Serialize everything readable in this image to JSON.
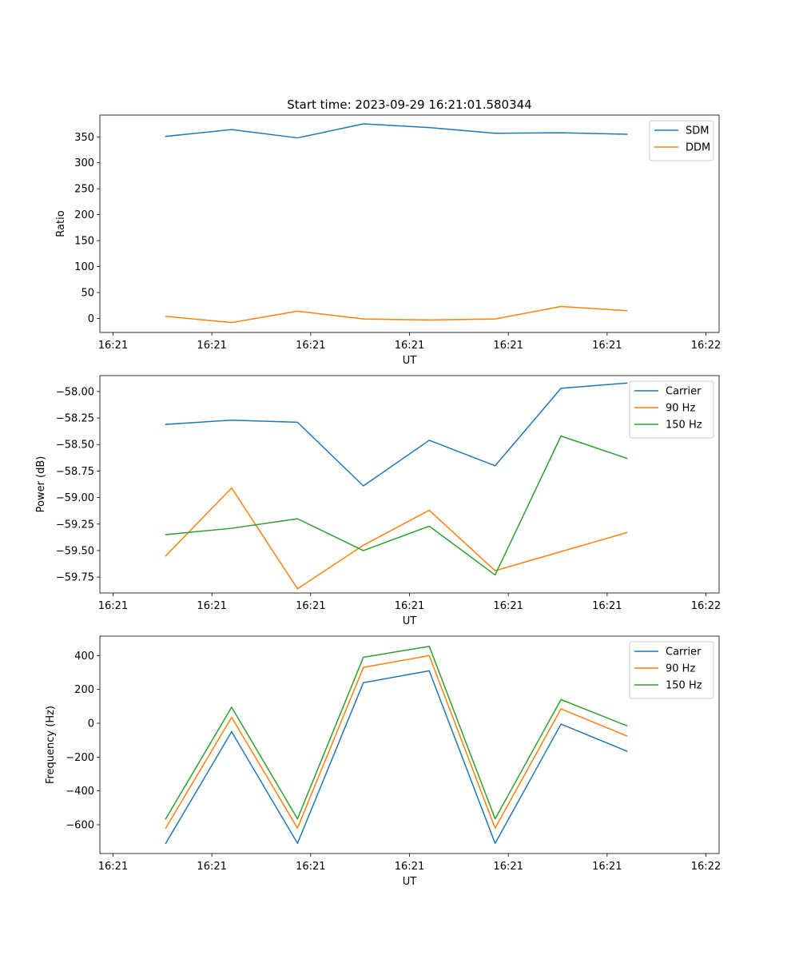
{
  "chart_data": [
    {
      "type": "line",
      "title": "Start time: 2023-09-29 16:21:01.580344",
      "xlabel": "UT",
      "ylabel": "Ratio",
      "x_tick_labels": [
        "16:21",
        "16:21",
        "16:21",
        "16:21",
        "16:21",
        "16:21",
        "16:22"
      ],
      "y_tick_labels": [
        "0",
        "50",
        "100",
        "150",
        "200",
        "250",
        "300",
        "350"
      ],
      "xlim": [
        0,
        9.4
      ],
      "ylim": [
        -27,
        392
      ],
      "x_ticks": [
        0.2,
        1.7,
        3.2,
        4.7,
        6.2,
        7.7,
        9.2
      ],
      "y_ticks": [
        0,
        50,
        100,
        150,
        200,
        250,
        300,
        350
      ],
      "x": [
        1,
        2,
        3,
        4,
        5,
        6,
        7,
        8
      ],
      "series": [
        {
          "name": "SDM",
          "color": "#1f77b4",
          "values": [
            351,
            364,
            348,
            375,
            368,
            357,
            358,
            355
          ]
        },
        {
          "name": "DDM",
          "color": "#ff7f0e",
          "values": [
            4,
            -8,
            14,
            -1,
            -3,
            -1,
            23,
            15
          ]
        }
      ],
      "legend": "top-right"
    },
    {
      "type": "line",
      "title": "",
      "xlabel": "UT",
      "ylabel": "Power (dB)",
      "x_tick_labels": [
        "16:21",
        "16:21",
        "16:21",
        "16:21",
        "16:21",
        "16:21",
        "16:22"
      ],
      "y_tick_labels": [
        "−59.75",
        "−59.50",
        "−59.25",
        "−59.00",
        "−58.75",
        "−58.50",
        "−58.25",
        "−58.00"
      ],
      "xlim": [
        0,
        9.4
      ],
      "ylim": [
        -59.9,
        -57.85
      ],
      "x_ticks": [
        0.2,
        1.7,
        3.2,
        4.7,
        6.2,
        7.7,
        9.2
      ],
      "y_ticks": [
        -59.75,
        -59.5,
        -59.25,
        -59.0,
        -58.75,
        -58.5,
        -58.25,
        -58.0
      ],
      "x": [
        1,
        2,
        3,
        4,
        5,
        6,
        7,
        8
      ],
      "series": [
        {
          "name": "Carrier",
          "color": "#1f77b4",
          "values": [
            -58.31,
            -58.27,
            -58.29,
            -58.89,
            -58.46,
            -58.7,
            -57.97,
            -57.92
          ]
        },
        {
          "name": "90 Hz",
          "color": "#ff7f0e",
          "values": [
            -59.55,
            -58.91,
            -59.86,
            -59.45,
            -59.12,
            -59.69,
            -59.51,
            -59.33
          ]
        },
        {
          "name": "150 Hz",
          "color": "#2ca02c",
          "values": [
            -59.35,
            -59.29,
            -59.2,
            -59.5,
            -59.27,
            -59.73,
            -58.42,
            -58.63
          ]
        }
      ],
      "legend": "top-right"
    },
    {
      "type": "line",
      "title": "",
      "xlabel": "UT",
      "ylabel": "Frequency (Hz)",
      "x_tick_labels": [
        "16:21",
        "16:21",
        "16:21",
        "16:21",
        "16:21",
        "16:21",
        "16:22"
      ],
      "y_tick_labels": [
        "−600",
        "−400",
        "−200",
        "0",
        "200",
        "400"
      ],
      "xlim": [
        0,
        9.4
      ],
      "ylim": [
        -770,
        515
      ],
      "x_ticks": [
        0.2,
        1.7,
        3.2,
        4.7,
        6.2,
        7.7,
        9.2
      ],
      "y_ticks": [
        -600,
        -400,
        -200,
        0,
        200,
        400
      ],
      "x": [
        1,
        2,
        3,
        4,
        5,
        6,
        7,
        8
      ],
      "series": [
        {
          "name": "Carrier",
          "color": "#1f77b4",
          "values": [
            -710,
            -50,
            -710,
            240,
            310,
            -710,
            -5,
            -165
          ]
        },
        {
          "name": "90 Hz",
          "color": "#ff7f0e",
          "values": [
            -620,
            35,
            -620,
            330,
            400,
            -620,
            85,
            -75
          ]
        },
        {
          "name": "150 Hz",
          "color": "#2ca02c",
          "values": [
            -565,
            95,
            -565,
            390,
            455,
            -565,
            140,
            -15
          ]
        }
      ],
      "legend": "top-right"
    }
  ]
}
